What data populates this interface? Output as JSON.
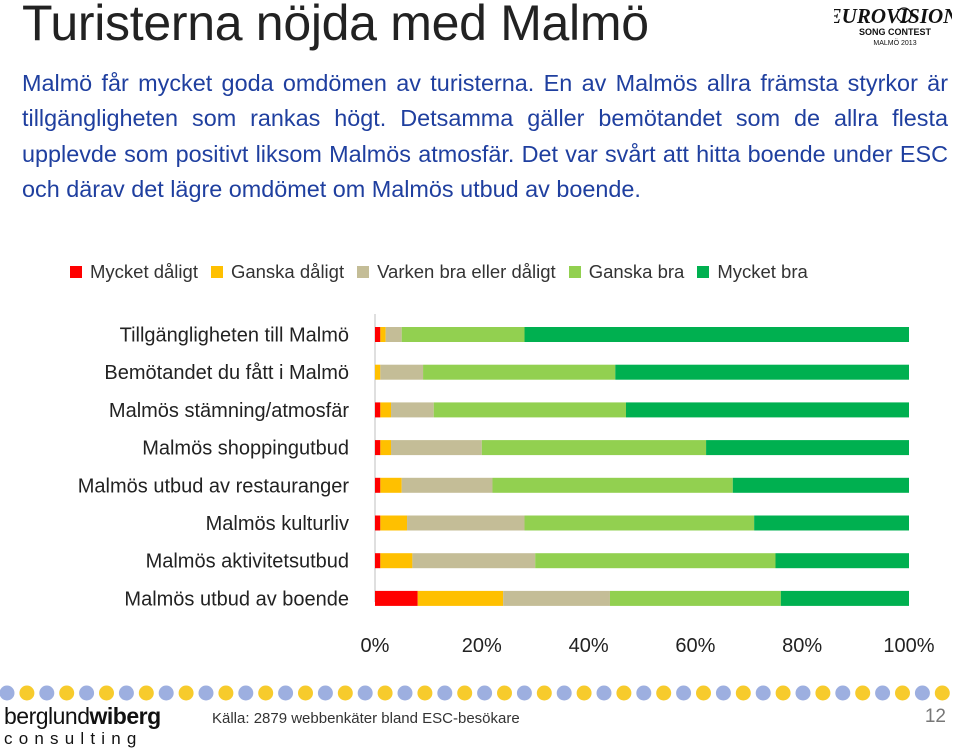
{
  "slide": {
    "title": "Turisterna nöjda med Malmö",
    "intro": "Malmö får mycket goda omdömen av turisterna. En av Malmös allra främsta styrkor är tillgängligheten som rankas högt. Detsamma gäller bemötandet som de allra flesta upplevde som positivt liksom Malmös atmosfär. Det var svårt att hitta boende under ESC och därav det lägre omdömet om Malmös utbud av boende.",
    "source": "Källa: 2879 webbenkäter bland ESC-besökare",
    "page_number": "12"
  },
  "logo": {
    "line1": "EUROVISION",
    "line2": "SONG CONTEST",
    "line3": "MALMÖ 2013"
  },
  "brand": {
    "name_light": "berglund",
    "name_bold": "wiberg",
    "sub": "consulting"
  },
  "colors": {
    "text_blue": "#1f3f9f",
    "footer_dot_blue": "#9dafe0",
    "footer_dot_yellow": "#f7cb2c"
  },
  "chart_data": {
    "type": "bar",
    "orientation": "horizontal",
    "stacked": "percent",
    "categories": [
      "Tillgängligheten till Malmö",
      "Bemötandet du fått i Malmö",
      "Malmös stämning/atmosfär",
      "Malmös shoppingutbud",
      "Malmös utbud av restauranger",
      "Malmös kulturliv",
      "Malmös aktivitetsutbud",
      "Malmös utbud av boende"
    ],
    "series": [
      {
        "name": "Mycket dåligt",
        "color": "#ff0000",
        "values": [
          1,
          0,
          1,
          1,
          1,
          1,
          1,
          8
        ]
      },
      {
        "name": "Ganska dåligt",
        "color": "#ffc000",
        "values": [
          1,
          1,
          2,
          2,
          4,
          5,
          6,
          16
        ]
      },
      {
        "name": "Varken bra eller dåligt",
        "color": "#c4bd97",
        "values": [
          3,
          8,
          8,
          17,
          17,
          22,
          23,
          20
        ]
      },
      {
        "name": "Ganska bra",
        "color": "#92d050",
        "values": [
          23,
          36,
          36,
          42,
          45,
          43,
          45,
          32
        ]
      },
      {
        "name": "Mycket bra",
        "color": "#00b050",
        "values": [
          72,
          55,
          53,
          38,
          33,
          29,
          25,
          24
        ]
      }
    ],
    "xlim": [
      0,
      100
    ],
    "x_ticks": [
      "0%",
      "20%",
      "40%",
      "60%",
      "80%",
      "100%"
    ],
    "legend_position": "top",
    "grid": false,
    "title": "",
    "xlabel": "",
    "ylabel": ""
  }
}
